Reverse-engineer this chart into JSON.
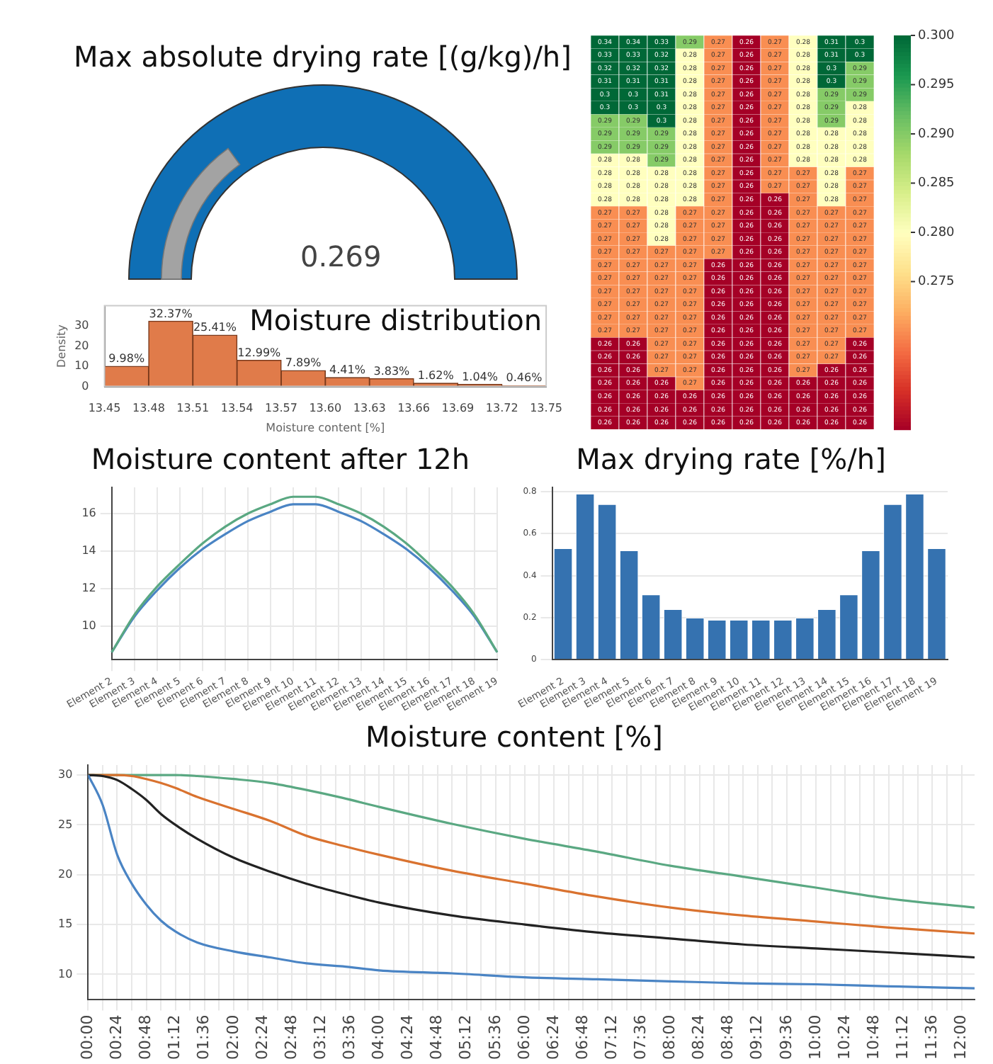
{
  "chart_data": [
    {
      "type": "other",
      "title": "Max absolute drying rate [(g/kg)/h]",
      "annotations": [
        "0.269"
      ],
      "color": "#0f6fb5"
    },
    {
      "type": "heatmap",
      "categories": [
        null,
        null,
        null,
        null,
        null,
        null,
        null,
        null,
        null,
        null
      ],
      "y_categories": [
        null,
        null,
        null,
        null,
        null,
        null,
        null,
        null,
        null,
        null,
        null,
        null,
        null,
        null,
        null,
        null,
        null,
        null,
        null,
        null,
        null,
        null,
        null,
        null,
        null,
        null,
        null,
        null,
        null,
        null
      ],
      "cells": [
        [
          0.34,
          0.34,
          0.33,
          0.29,
          0.27,
          0.26,
          0.27,
          0.28,
          0.31,
          0.3
        ],
        [
          0.33,
          0.33,
          0.32,
          0.28,
          0.27,
          0.26,
          0.27,
          0.28,
          0.31,
          0.3
        ],
        [
          0.32,
          0.32,
          0.32,
          0.28,
          0.27,
          0.26,
          0.27,
          0.28,
          0.3,
          0.29
        ],
        [
          0.31,
          0.31,
          0.31,
          0.28,
          0.27,
          0.26,
          0.27,
          0.28,
          0.3,
          0.29
        ],
        [
          0.3,
          0.3,
          0.31,
          0.28,
          0.27,
          0.26,
          0.27,
          0.28,
          0.29,
          0.29
        ],
        [
          0.3,
          0.3,
          0.3,
          0.28,
          0.27,
          0.26,
          0.27,
          0.28,
          0.29,
          0.28
        ],
        [
          0.29,
          0.29,
          0.3,
          0.28,
          0.27,
          0.26,
          0.27,
          0.28,
          0.29,
          0.28
        ],
        [
          0.29,
          0.29,
          0.29,
          0.28,
          0.27,
          0.26,
          0.27,
          0.28,
          0.28,
          0.28
        ],
        [
          0.29,
          0.29,
          0.29,
          0.28,
          0.27,
          0.26,
          0.27,
          0.28,
          0.28,
          0.28
        ],
        [
          0.28,
          0.28,
          0.29,
          0.28,
          0.27,
          0.26,
          0.27,
          0.28,
          0.28,
          0.28
        ],
        [
          0.28,
          0.28,
          0.28,
          0.28,
          0.27,
          0.26,
          0.27,
          0.27,
          0.28,
          0.27
        ],
        [
          0.28,
          0.28,
          0.28,
          0.28,
          0.27,
          0.26,
          0.27,
          0.27,
          0.28,
          0.27
        ],
        [
          0.28,
          0.28,
          0.28,
          0.28,
          0.27,
          0.26,
          0.26,
          0.27,
          0.28,
          0.27
        ],
        [
          0.27,
          0.27,
          0.28,
          0.27,
          0.27,
          0.26,
          0.26,
          0.27,
          0.27,
          0.27
        ],
        [
          0.27,
          0.27,
          0.28,
          0.27,
          0.27,
          0.26,
          0.26,
          0.27,
          0.27,
          0.27
        ],
        [
          0.27,
          0.27,
          0.28,
          0.27,
          0.27,
          0.26,
          0.26,
          0.27,
          0.27,
          0.27
        ],
        [
          0.27,
          0.27,
          0.27,
          0.27,
          0.27,
          0.26,
          0.26,
          0.27,
          0.27,
          0.27
        ],
        [
          0.27,
          0.27,
          0.27,
          0.27,
          0.26,
          0.26,
          0.26,
          0.27,
          0.27,
          0.27
        ],
        [
          0.27,
          0.27,
          0.27,
          0.27,
          0.26,
          0.26,
          0.26,
          0.27,
          0.27,
          0.27
        ],
        [
          0.27,
          0.27,
          0.27,
          0.27,
          0.26,
          0.26,
          0.26,
          0.27,
          0.27,
          0.27
        ],
        [
          0.27,
          0.27,
          0.27,
          0.27,
          0.26,
          0.26,
          0.26,
          0.27,
          0.27,
          0.27
        ],
        [
          0.27,
          0.27,
          0.27,
          0.27,
          0.26,
          0.26,
          0.26,
          0.27,
          0.27,
          0.27
        ],
        [
          0.27,
          0.27,
          0.27,
          0.27,
          0.26,
          0.26,
          0.26,
          0.27,
          0.27,
          0.27
        ],
        [
          0.26,
          0.26,
          0.27,
          0.27,
          0.26,
          0.26,
          0.26,
          0.27,
          0.27,
          0.26
        ],
        [
          0.26,
          0.26,
          0.27,
          0.27,
          0.26,
          0.26,
          0.26,
          0.27,
          0.27,
          0.26
        ],
        [
          0.26,
          0.26,
          0.27,
          0.27,
          0.26,
          0.26,
          0.26,
          0.27,
          0.26,
          0.26
        ],
        [
          0.26,
          0.26,
          0.26,
          0.27,
          0.26,
          0.26,
          0.26,
          0.26,
          0.26,
          0.26
        ],
        [
          0.26,
          0.26,
          0.26,
          0.26,
          0.26,
          0.26,
          0.26,
          0.26,
          0.26,
          0.26
        ],
        [
          0.26,
          0.26,
          0.26,
          0.26,
          0.26,
          0.26,
          0.26,
          0.26,
          0.26,
          0.26
        ],
        [
          0.26,
          0.26,
          0.26,
          0.26,
          0.26,
          0.26,
          0.26,
          0.26,
          0.26,
          0.26
        ]
      ],
      "data_labels": true,
      "clim": [
        0.26,
        0.3
      ],
      "cticks": [
        {
          "value": 0.3,
          "label": "0.300"
        },
        0.295,
        {
          "value": 0.29,
          "label": "0.290"
        },
        0.285,
        {
          "value": 0.28,
          "label": "0.280"
        },
        0.275
      ]
    },
    {
      "type": "histogram",
      "title": "Moisture distribution",
      "xlabel": "Moisture content [%]",
      "ylabel": "Density",
      "bins": [
        13.45,
        13.48,
        13.51,
        13.54,
        13.57,
        13.6,
        13.63,
        13.66,
        13.69,
        13.72,
        13.75
      ],
      "values": [
        9.98,
        32.37,
        25.41,
        12.99,
        7.89,
        4.41,
        3.83,
        1.62,
        1.04,
        0.46
      ],
      "value_labels": [
        "9.98%",
        "32.37%",
        "25.41%",
        "12.99%",
        "7.89%",
        "4.41%",
        "3.83%",
        "1.62%",
        "1.04%",
        "0.46%"
      ],
      "color": "#e07b4a",
      "xlim": [
        13.45,
        13.75
      ],
      "xticks": [
        13.45,
        13.48,
        13.51,
        13.54,
        13.57,
        {
          "value": 13.6,
          "label": "13.60"
        },
        13.63,
        13.66,
        13.69,
        13.72,
        13.75
      ],
      "ylim": [
        0,
        40
      ],
      "yticks": [
        0,
        10,
        20,
        30
      ]
    },
    {
      "type": "line",
      "title": "Moisture content after 12h",
      "categories": [
        "Element 2",
        "Element 3",
        "Element 4",
        "Element 5",
        "Element 6",
        "Element 7",
        "Element 8",
        "Element 9",
        "Element 10",
        "Element 11",
        "Element 12",
        "Element 13",
        "Element 14",
        "Element 15",
        "Element 16",
        "Element 17",
        "Element 18",
        "Element 19"
      ],
      "series": [
        {
          "color": "#5aa882",
          "values": [
            8.6,
            10.6,
            12.1,
            13.3,
            14.4,
            15.3,
            16,
            16.5,
            16.9,
            16.9,
            16.5,
            16,
            15.3,
            14.4,
            13.3,
            12.1,
            10.6,
            8.6
          ]
        },
        {
          "color": "#4a84c4",
          "values": [
            8.6,
            10.5,
            11.9,
            13.1,
            14.1,
            14.9,
            15.6,
            16.1,
            16.5,
            16.5,
            16.1,
            15.6,
            14.9,
            14.1,
            13.1,
            11.9,
            10.5,
            8.6
          ]
        }
      ],
      "ylim": [
        8.2,
        17.4
      ],
      "yticks": [
        10,
        12,
        14,
        16
      ],
      "grid": true,
      "marker": "none"
    },
    {
      "type": "bar",
      "title": "Max drying rate [%/h]",
      "categories": [
        "Element 2",
        "Element 3",
        "Element 4",
        "Element 5",
        "Element 6",
        "Element 7",
        "Element 8",
        "Element 9",
        "Element 10",
        "Element 11",
        "Element 12",
        "Element 13",
        "Element 14",
        "Element 15",
        "Element 16",
        "Element 17",
        "Element 18",
        "Element 19"
      ],
      "values": [
        0.53,
        0.79,
        0.74,
        0.52,
        0.31,
        0.24,
        0.2,
        0.19,
        0.19,
        0.19,
        0.19,
        0.2,
        0.24,
        0.31,
        0.52,
        0.74,
        0.79,
        0.53
      ],
      "color": "#3572b0",
      "ylim": [
        0,
        0.82
      ],
      "yticks": [
        0,
        0.2,
        0.4,
        0.6,
        0.8
      ],
      "grid": "y"
    },
    {
      "type": "line",
      "title": "Moisture content [%]",
      "x": [
        0,
        0.2,
        0.4,
        0.6,
        0.8,
        1,
        1.2,
        1.5,
        2,
        2.5,
        3,
        3.5,
        4,
        5,
        6,
        7,
        8,
        9,
        10,
        11,
        12.18
      ],
      "series": [
        {
          "color": "#4a84c4",
          "values": [
            30,
            27,
            22,
            19.1,
            17,
            15.4,
            14.3,
            13.2,
            12.3,
            11.7,
            11.1,
            10.8,
            10.4,
            10.1,
            9.7,
            9.5,
            9.3,
            9.1,
            9,
            8.8,
            8.6
          ]
        },
        {
          "color": "#222222",
          "values": [
            30,
            29.9,
            29.5,
            28.6,
            27.5,
            26.1,
            25,
            23.6,
            21.7,
            20.3,
            19.1,
            18.1,
            17.2,
            15.9,
            15,
            14.2,
            13.6,
            13,
            12.6,
            12.2,
            11.7
          ]
        },
        {
          "color": "#d9722f",
          "values": [
            30,
            30,
            30,
            29.9,
            29.6,
            29.2,
            28.7,
            27.8,
            26.6,
            25.4,
            23.9,
            22.9,
            22,
            20.4,
            19.1,
            17.8,
            16.7,
            15.9,
            15.3,
            14.7,
            14.1
          ]
        },
        {
          "color": "#5aa882",
          "values": [
            30,
            30,
            30,
            30,
            30,
            30,
            30,
            29.9,
            29.6,
            29.2,
            28.5,
            27.7,
            26.8,
            25.1,
            23.6,
            22.3,
            20.9,
            19.8,
            18.7,
            17.6,
            16.7
          ]
        }
      ],
      "xlim": [
        0,
        12.18
      ],
      "xticks": [
        {
          "value": 0,
          "label": "00:00"
        },
        {
          "value": 0.2,
          "label": null
        },
        {
          "value": 0.4,
          "label": "00:24"
        },
        {
          "value": 0.6,
          "label": null
        },
        {
          "value": 0.8,
          "label": "00:48"
        },
        {
          "value": 1,
          "label": null
        },
        {
          "value": 1.2,
          "label": "01:12"
        },
        {
          "value": 1.4,
          "label": null
        },
        {
          "value": 1.6,
          "label": "01:36"
        },
        {
          "value": 1.8,
          "label": null
        },
        {
          "value": 2,
          "label": "02:00"
        },
        {
          "value": 2.2,
          "label": null
        },
        {
          "value": 2.4,
          "label": "02:24"
        },
        {
          "value": 2.6,
          "label": null
        },
        {
          "value": 2.8,
          "label": "02:48"
        },
        {
          "value": 3,
          "label": null
        },
        {
          "value": 3.2,
          "label": "03:12"
        },
        {
          "value": 3.4,
          "label": null
        },
        {
          "value": 3.6,
          "label": "03:36"
        },
        {
          "value": 3.8,
          "label": null
        },
        {
          "value": 4,
          "label": "04:00"
        },
        {
          "value": 4.2,
          "label": null
        },
        {
          "value": 4.4,
          "label": "04:24"
        },
        {
          "value": 4.6,
          "label": null
        },
        {
          "value": 4.8,
          "label": "04:48"
        },
        {
          "value": 5,
          "label": null
        },
        {
          "value": 5.2,
          "label": "05:12"
        },
        {
          "value": 5.4,
          "label": null
        },
        {
          "value": 5.6,
          "label": "05:36"
        },
        {
          "value": 5.8,
          "label": null
        },
        {
          "value": 6,
          "label": "06:00"
        },
        {
          "value": 6.2,
          "label": null
        },
        {
          "value": 6.4,
          "label": "06:24"
        },
        {
          "value": 6.6,
          "label": null
        },
        {
          "value": 6.8,
          "label": "06:48"
        },
        {
          "value": 7,
          "label": null
        },
        {
          "value": 7.2,
          "label": "07:12"
        },
        {
          "value": 7.4,
          "label": null
        },
        {
          "value": 7.6,
          "label": "07:36"
        },
        {
          "value": 7.8,
          "label": null
        },
        {
          "value": 8,
          "label": "08:00"
        },
        {
          "value": 8.2,
          "label": null
        },
        {
          "value": 8.4,
          "label": "08:24"
        },
        {
          "value": 8.6,
          "label": null
        },
        {
          "value": 8.8,
          "label": "08:48"
        },
        {
          "value": 9,
          "label": null
        },
        {
          "value": 9.2,
          "label": "09:12"
        },
        {
          "value": 9.4,
          "label": null
        },
        {
          "value": 9.6,
          "label": "09:36"
        },
        {
          "value": 9.8,
          "label": null
        },
        {
          "value": 10,
          "label": "10:00"
        },
        {
          "value": 10.2,
          "label": null
        },
        {
          "value": 10.4,
          "label": "10:24"
        },
        {
          "value": 10.6,
          "label": null
        },
        {
          "value": 10.8,
          "label": "10:48"
        },
        {
          "value": 11,
          "label": null
        },
        {
          "value": 11.2,
          "label": "11:12"
        },
        {
          "value": 11.4,
          "label": null
        },
        {
          "value": 11.6,
          "label": "11:36"
        },
        {
          "value": 11.8,
          "label": null
        },
        {
          "value": 12,
          "label": "12:00"
        }
      ],
      "ylim": [
        7.5,
        31
      ],
      "yticks": [
        10,
        15,
        20,
        25,
        30
      ],
      "grid": true,
      "marker": "none"
    }
  ]
}
